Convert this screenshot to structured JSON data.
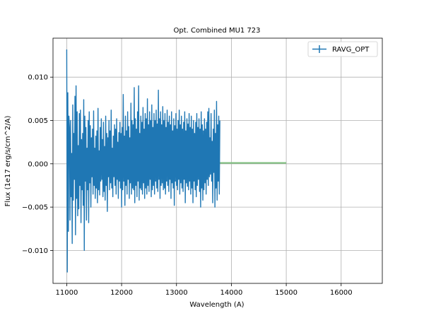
{
  "chart_data": {
    "type": "line",
    "title": "Opt. Combined MU1 723",
    "xlabel": "Wavelength (A)",
    "ylabel": "Flux (1e17 erg/s/cm^2/A)",
    "xlim": [
      10750,
      16750
    ],
    "ylim": [
      -0.0138,
      0.0145
    ],
    "xticks": [
      11000,
      12000,
      13000,
      14000,
      15000,
      16000
    ],
    "yticks": [
      -0.01,
      -0.005,
      0.0,
      0.005,
      0.01
    ],
    "xtick_labels": [
      "11000",
      "12000",
      "13000",
      "14000",
      "15000",
      "16000"
    ],
    "ytick_labels": [
      "−0.010",
      "−0.005",
      "0.000",
      "0.005",
      "0.010"
    ],
    "grid": true,
    "legend": {
      "position": "top-right",
      "entries": [
        "RAVG_OPT"
      ]
    },
    "series": [
      {
        "name": "RAVG_OPT",
        "color": "#1f77b4",
        "x_start": 11000,
        "x_step": 10,
        "values": [
          0.0132,
          -0.0125,
          0.0082,
          -0.0078,
          0.0055,
          0.0042,
          -0.0065,
          0.005,
          -0.0038,
          0.0012,
          -0.0092,
          0.0068,
          -0.0042,
          0.0035,
          -0.0018,
          0.0078,
          -0.0082,
          0.009,
          -0.004,
          0.006,
          -0.006,
          0.0021,
          -0.0052,
          0.0058,
          -0.0025,
          0.0062,
          -0.0068,
          0.0028,
          -0.003,
          0.0035,
          -0.0048,
          0.0074,
          -0.01,
          0.0055,
          -0.002,
          0.0042,
          -0.0065,
          0.0018,
          -0.003,
          0.005,
          -0.0068,
          0.006,
          -0.0022,
          0.0044,
          -0.005,
          0.003,
          -0.0015,
          0.004,
          -0.0035,
          0.0061,
          -0.0025,
          0.0018,
          -0.004,
          0.0032,
          -0.0028,
          0.0038,
          -0.0045,
          0.0064,
          -0.003,
          0.0015,
          -0.0036,
          0.0042,
          -0.002,
          0.0052,
          -0.0018,
          0.0028,
          -0.0038,
          0.0048,
          -0.0032,
          0.002,
          -0.0042,
          0.0055,
          -0.0025,
          0.0035,
          -0.0055,
          0.003,
          -0.0015,
          0.005,
          -0.003,
          0.0038,
          -0.0022,
          0.0062,
          -0.0028,
          0.0018,
          -0.0038,
          0.0032,
          -0.0015,
          0.0045,
          -0.0025,
          0.004,
          -0.0035,
          0.0052,
          -0.0018,
          0.0025,
          -0.004,
          0.0036,
          -0.002,
          0.0048,
          -0.0028,
          0.0035,
          -0.005,
          0.0042,
          -0.003,
          0.008,
          -0.002,
          0.0032,
          -0.0048,
          0.0055,
          -0.0025,
          0.0038,
          -0.0035,
          0.006,
          -0.0018,
          0.0043,
          -0.004,
          0.003,
          -0.0022,
          0.007,
          -0.0035,
          0.005,
          -0.0028,
          0.0045,
          -0.003,
          0.0088,
          -0.0045,
          0.0052,
          -0.0025,
          0.004,
          -0.0038,
          0.006,
          -0.002,
          0.009,
          -0.0042,
          0.0035,
          -0.0028,
          0.0055,
          -0.003,
          0.0048,
          -0.0035,
          0.0065,
          -0.0022,
          0.004,
          -0.004,
          0.0058,
          -0.0028,
          0.0052,
          -0.0035,
          0.0075,
          -0.0025,
          0.0045,
          -0.0032,
          0.006,
          -0.0018,
          0.005,
          -0.0038,
          0.0068,
          -0.003,
          0.0042,
          -0.0025,
          0.0058,
          -0.0035,
          0.005,
          -0.002,
          0.0062,
          -0.0028,
          0.0046,
          -0.0032,
          0.0085,
          -0.0018,
          0.0052,
          -0.004,
          0.006,
          -0.0025,
          0.0045,
          -0.0022,
          0.0066,
          -0.003,
          0.005,
          -0.0028,
          0.0058,
          -0.0035,
          0.0042,
          -0.002,
          0.0062,
          -0.0025,
          0.0048,
          -0.0032,
          0.0055,
          -0.0018,
          0.0045,
          -0.004,
          0.006,
          -0.0022,
          0.0038,
          -0.0028,
          0.0052,
          -0.0048,
          0.0044,
          -0.002,
          0.0058,
          -0.0025,
          0.004,
          -0.003,
          0.005,
          -0.0018,
          0.0062,
          -0.0035,
          0.0045,
          -0.0022,
          0.0055,
          -0.0028,
          0.004,
          -0.0032,
          0.0048,
          -0.0018,
          0.006,
          -0.0045,
          0.0038,
          -0.0022,
          0.0052,
          -0.0026,
          0.0046,
          -0.003,
          0.0058,
          -0.002,
          0.0042,
          -0.0035,
          0.0055,
          -0.0028,
          0.004,
          -0.0045,
          0.005,
          -0.002,
          0.0035,
          -0.003,
          0.0048,
          -0.0038,
          0.0058,
          -0.0025,
          0.0042,
          -0.0018,
          0.0052,
          -0.0032,
          0.004,
          -0.005,
          0.006,
          -0.0028,
          0.0045,
          -0.0042,
          0.0038,
          -0.003,
          0.0052,
          -0.0022,
          0.004,
          -0.0035,
          0.0048,
          -0.0018,
          0.006,
          -0.0025,
          0.0064,
          -0.0015,
          0.003,
          -0.0012,
          0.0058,
          -0.002,
          0.0026,
          -0.0045,
          0.004,
          -0.001,
          0.0062,
          -0.005,
          0.0035,
          -0.0028,
          0.0072,
          -0.0042,
          0.0045,
          -0.002,
          0.0055,
          -0.0035,
          0.005
        ],
        "note_values": "approximate read-off"
      },
      {
        "name": "",
        "color": "#7fbf7f",
        "x": [
          13000,
          15000
        ],
        "values": [
          0.0001,
          0.0001
        ]
      }
    ]
  }
}
